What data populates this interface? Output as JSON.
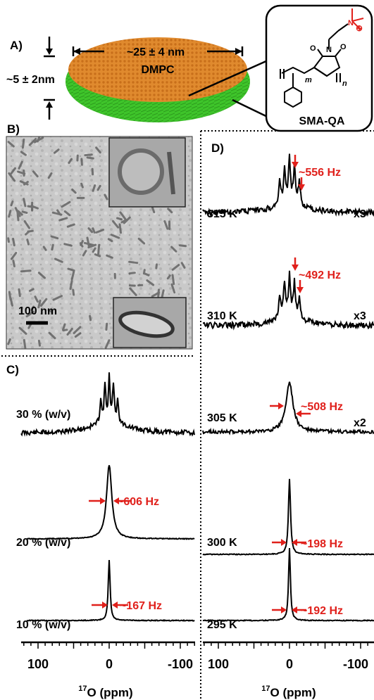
{
  "panel_a": {
    "label": "A)",
    "diameter_label": "~25 ± 4 nm",
    "thickness_label": "~5 ± 2nm",
    "lipid_label": "DMPC",
    "polymer_label": "SMA-QA",
    "charge_symbol": "⊕",
    "nitrogen_symbol": "N",
    "oxygen_symbol": "O",
    "index_m": "m",
    "index_n": "n",
    "disc_top_color": "#e08a2e",
    "belt_color": "#3ec42a"
  },
  "panel_b": {
    "label": "B)",
    "scale_bar_label": "100 nm"
  },
  "panel_c": {
    "label": "C)",
    "x_axis_title_sup": "17",
    "x_axis_title": "O (ppm)",
    "x_ticks": [
      "100",
      "0",
      "-100"
    ],
    "spectra": [
      {
        "label": "30 % (w/v)",
        "width_label": "",
        "scale": ""
      },
      {
        "label": "20 % (w/v)",
        "width_label": "~606 Hz",
        "scale": ""
      },
      {
        "label": "10 % (w/v)",
        "width_label": "~167 Hz",
        "scale": ""
      }
    ]
  },
  "panel_d": {
    "label": "D)",
    "x_axis_title_sup": "17",
    "x_axis_title": "O (ppm)",
    "x_ticks": [
      "100",
      "0",
      "-100"
    ],
    "spectra": [
      {
        "label": "315 K",
        "width_label": "~556 Hz",
        "scale": "x3"
      },
      {
        "label": "310 K",
        "width_label": "~492 Hz",
        "scale": "x3"
      },
      {
        "label": "305 K",
        "width_label": "~508 Hz",
        "scale": "x2"
      },
      {
        "label": "300 K",
        "width_label": "~198 Hz",
        "scale": ""
      },
      {
        "label": "295 K",
        "width_label": "~192 Hz",
        "scale": ""
      }
    ]
  },
  "chart_data": [
    {
      "type": "line",
      "title": "C)",
      "xlabel": "17O (ppm)",
      "x_ticks": [
        100,
        0,
        -100
      ],
      "xlim": [
        150,
        -150
      ],
      "series": [
        {
          "name": "30 % (w/v)",
          "peak_ppm": 0,
          "pattern": "quintet",
          "splitting_ppm": 7
        },
        {
          "name": "20 % (w/v)",
          "peak_ppm": 0,
          "linewidth_hz": 606
        },
        {
          "name": "10 % (w/v)",
          "peak_ppm": 0,
          "linewidth_hz": 167
        }
      ]
    },
    {
      "type": "line",
      "title": "D)",
      "xlabel": "17O (ppm)",
      "x_ticks": [
        100,
        0,
        -100
      ],
      "xlim": [
        150,
        -150
      ],
      "series": [
        {
          "name": "315 K",
          "peak_ppm": 0,
          "splitting_hz": 556,
          "pattern": "quintet",
          "scale": "x3"
        },
        {
          "name": "310 K",
          "peak_ppm": 0,
          "splitting_hz": 492,
          "pattern": "quintet",
          "scale": "x3"
        },
        {
          "name": "305 K",
          "peak_ppm": 0,
          "linewidth_hz": 508,
          "scale": "x2"
        },
        {
          "name": "300 K",
          "peak_ppm": 0,
          "linewidth_hz": 198
        },
        {
          "name": "295 K",
          "peak_ppm": 0,
          "linewidth_hz": 192
        }
      ]
    }
  ]
}
